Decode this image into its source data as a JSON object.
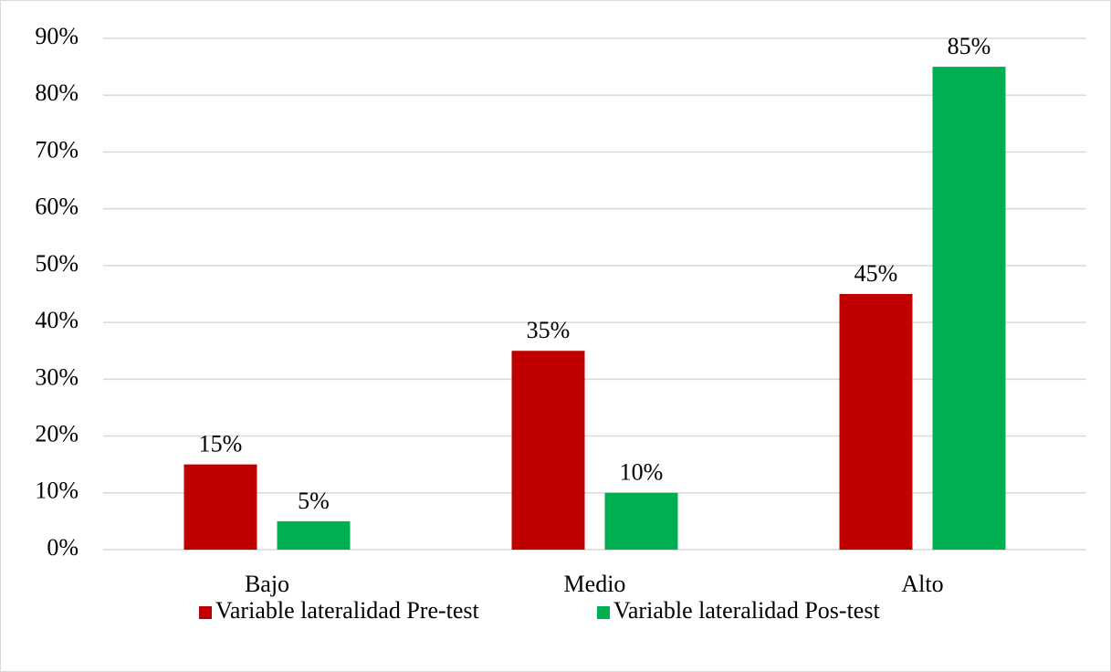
{
  "chart_data": {
    "type": "bar",
    "categories": [
      "Bajo",
      "Medio",
      "Alto"
    ],
    "series": [
      {
        "name": "Variable lateralidad Pre-test",
        "color": "#c00000",
        "values": [
          15,
          35,
          45
        ],
        "value_labels": [
          "15%",
          "35%",
          "45%"
        ]
      },
      {
        "name": "Variable lateralidad Pos-test",
        "color": "#00b050",
        "values": [
          5,
          10,
          85
        ],
        "value_labels": [
          "5%",
          "10%",
          "85%"
        ]
      }
    ],
    "ylim": [
      0,
      90
    ],
    "yticks": [
      {
        "value": 0,
        "label": "0%"
      },
      {
        "value": 10,
        "label": "10%"
      },
      {
        "value": 20,
        "label": "20%"
      },
      {
        "value": 30,
        "label": "30%"
      },
      {
        "value": 40,
        "label": "40%"
      },
      {
        "value": 50,
        "label": "50%"
      },
      {
        "value": 60,
        "label": "60%"
      },
      {
        "value": 70,
        "label": "70%"
      },
      {
        "value": 80,
        "label": "80%"
      },
      {
        "value": 90,
        "label": "90%"
      }
    ],
    "grid": true,
    "legend": "bottom"
  }
}
